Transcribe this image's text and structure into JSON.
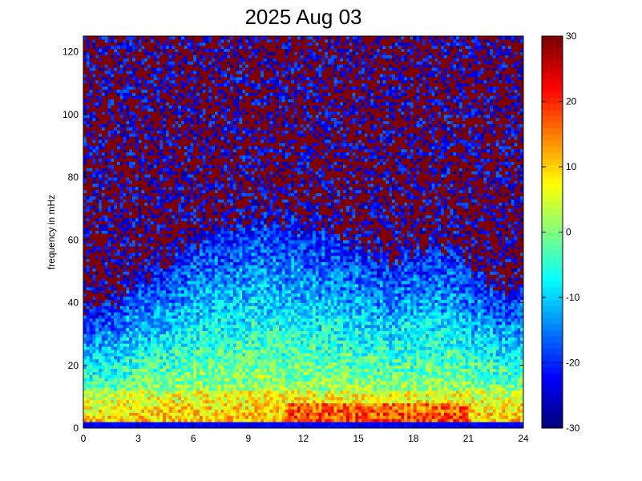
{
  "chart_data": {
    "type": "heatmap",
    "title": "2025 Aug 03",
    "xlabel": "",
    "ylabel": "frequency in mHz",
    "xlim": [
      0,
      24
    ],
    "ylim": [
      0,
      125
    ],
    "x_ticks": [
      "0",
      "3",
      "6",
      "9",
      "12",
      "15",
      "18",
      "21",
      "24"
    ],
    "y_ticks": [
      "0",
      "20",
      "40",
      "60",
      "80",
      "100",
      "120"
    ],
    "colorbar": {
      "range": [
        -30,
        30
      ],
      "ticks": [
        "-30",
        "-20",
        "-10",
        "0",
        "10",
        "20",
        "30"
      ],
      "colormap": "jet"
    },
    "grid": false,
    "description_values": {
      "background_level_high_freq": 30,
      "low_freq_floor_level": -25,
      "active_band_upper_edge_mhz_by_hour": [
        [
          0,
          35
        ],
        [
          1,
          38
        ],
        [
          2,
          42
        ],
        [
          3,
          48
        ],
        [
          4,
          50
        ],
        [
          5,
          55
        ],
        [
          6,
          60
        ],
        [
          7,
          62
        ],
        [
          8,
          65
        ],
        [
          9,
          67
        ],
        [
          10,
          68
        ],
        [
          11,
          66
        ],
        [
          12,
          64
        ],
        [
          13,
          63
        ],
        [
          14,
          63
        ],
        [
          15,
          60
        ],
        [
          16,
          55
        ],
        [
          17,
          55
        ],
        [
          18,
          55
        ],
        [
          19,
          58
        ],
        [
          20,
          57
        ],
        [
          21,
          52
        ],
        [
          22,
          48
        ],
        [
          23,
          45
        ],
        [
          24,
          42
        ]
      ]
    }
  }
}
